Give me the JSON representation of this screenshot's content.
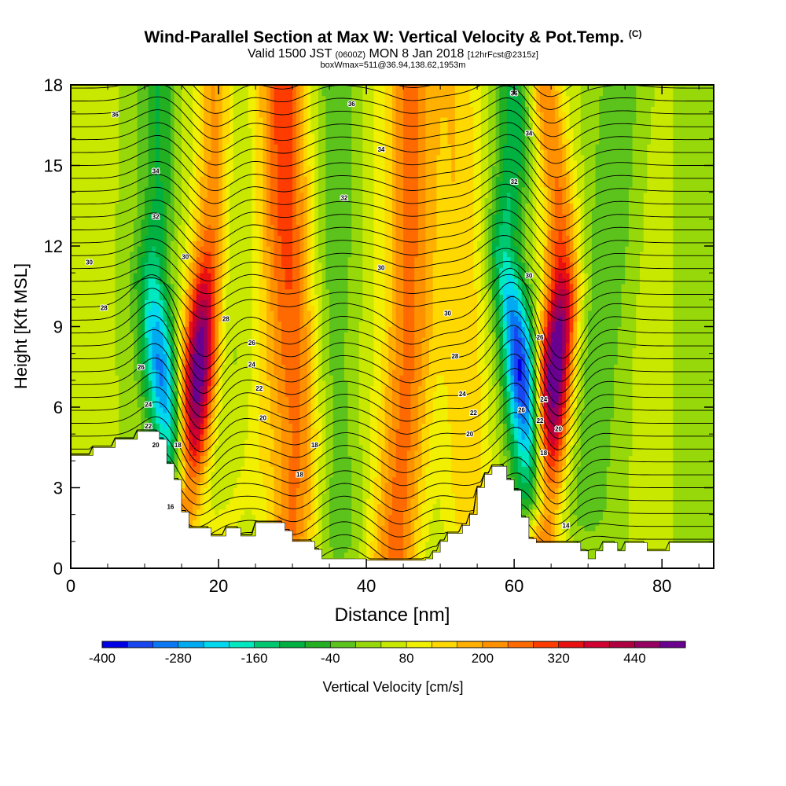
{
  "title": {
    "main": "Wind-Parallel Section at Max W: Vertical Velocity & Pot.Temp.",
    "unit_tag": "(C)",
    "valid_a": "Valid 1500 JST",
    "valid_b": "(0600Z)",
    "valid_c": "MON 8 Jan 2018",
    "valid_d": "[12hrFcst@2315z]",
    "box": "boxWmax=511@36.94,138.62,1953m"
  },
  "chart_data": {
    "type": "heatmap",
    "xlabel": "Distance [nm]",
    "ylabel": "Height [Kft MSL]",
    "xlim": [
      0,
      87
    ],
    "ylim": [
      0,
      18
    ],
    "xticks": [
      0,
      20,
      40,
      60,
      80
    ],
    "yticks": [
      0,
      3,
      6,
      9,
      12,
      15,
      18
    ],
    "colorbar": {
      "label": "Vertical Velocity [cm/s]",
      "ticks": [
        -400,
        -280,
        -160,
        -40,
        80,
        200,
        320,
        440
      ],
      "levels": [
        -400,
        -360,
        -320,
        -280,
        -240,
        -200,
        -160,
        -120,
        -80,
        -40,
        0,
        40,
        80,
        120,
        160,
        200,
        240,
        280,
        320,
        360,
        400,
        440,
        480,
        520
      ],
      "colors": [
        "#0000e6",
        "#1846f0",
        "#0a78f5",
        "#00aaf0",
        "#00d8f0",
        "#00e8c0",
        "#00c870",
        "#00b040",
        "#22b022",
        "#5cc21c",
        "#96d80a",
        "#c8e800",
        "#f0f000",
        "#ffd800",
        "#ffb000",
        "#ff9000",
        "#ff6a00",
        "#ff3c00",
        "#e81010",
        "#d00030",
        "#b00040",
        "#960060",
        "#6a0090"
      ]
    },
    "terrain_kft": [
      [
        0,
        4.2
      ],
      [
        3,
        4.2
      ],
      [
        3,
        4.5
      ],
      [
        6,
        4.5
      ],
      [
        6,
        4.8
      ],
      [
        9,
        4.8
      ],
      [
        9,
        5.1
      ],
      [
        12,
        5.1
      ],
      [
        12,
        4.8
      ],
      [
        13,
        4.8
      ],
      [
        13,
        3.9
      ],
      [
        14,
        3.9
      ],
      [
        14,
        3.3
      ],
      [
        15,
        3.3
      ],
      [
        15,
        2.1
      ],
      [
        16,
        2.1
      ],
      [
        16,
        1.5
      ],
      [
        19,
        1.5
      ],
      [
        19,
        1.2
      ],
      [
        21,
        1.2
      ],
      [
        21,
        1.5
      ],
      [
        23,
        1.5
      ],
      [
        23,
        1.2
      ],
      [
        25,
        1.2
      ],
      [
        25,
        1.7
      ],
      [
        29,
        1.7
      ],
      [
        29,
        1.4
      ],
      [
        30,
        1.4
      ],
      [
        30,
        1.0
      ],
      [
        33,
        1.0
      ],
      [
        33,
        0.7
      ],
      [
        34,
        0.7
      ],
      [
        34,
        0.35
      ],
      [
        38,
        0.35
      ],
      [
        38,
        0.35
      ],
      [
        40,
        0.35
      ],
      [
        40,
        0.3
      ],
      [
        48,
        0.3
      ],
      [
        48,
        0.35
      ],
      [
        49,
        0.35
      ],
      [
        49,
        0.6
      ],
      [
        50,
        0.6
      ],
      [
        50,
        1.0
      ],
      [
        51,
        1.0
      ],
      [
        51,
        1.3
      ],
      [
        53,
        1.3
      ],
      [
        53,
        1.6
      ],
      [
        54,
        1.6
      ],
      [
        54,
        2.0
      ],
      [
        55,
        2.0
      ],
      [
        55,
        3.0
      ],
      [
        56,
        3.0
      ],
      [
        56,
        3.5
      ],
      [
        57,
        3.5
      ],
      [
        57,
        3.8
      ],
      [
        59,
        3.8
      ],
      [
        59,
        3.3
      ],
      [
        60,
        3.3
      ],
      [
        60,
        2.9
      ],
      [
        61,
        2.9
      ],
      [
        61,
        1.9
      ],
      [
        62,
        1.9
      ],
      [
        62,
        1.1
      ],
      [
        63,
        1.1
      ],
      [
        63,
        0.95
      ],
      [
        69,
        0.95
      ],
      [
        69,
        0.65
      ],
      [
        70,
        0.65
      ],
      [
        70,
        0.35
      ],
      [
        71,
        0.35
      ],
      [
        71,
        0.65
      ],
      [
        72,
        0.65
      ],
      [
        72,
        0.95
      ],
      [
        74,
        0.95
      ],
      [
        74,
        0.65
      ],
      [
        75,
        0.65
      ],
      [
        75,
        0.95
      ],
      [
        78,
        0.95
      ],
      [
        78,
        0.65
      ],
      [
        81,
        0.65
      ],
      [
        81,
        0.95
      ],
      [
        87,
        0.95
      ]
    ],
    "updrafts": [
      {
        "name": "up1",
        "points": [
          [
            15.5,
            2.3
          ],
          [
            16.5,
            4.5
          ],
          [
            17.2,
            7
          ],
          [
            18,
            10
          ],
          [
            19,
            13
          ],
          [
            19.5,
            16
          ],
          [
            19.5,
            18
          ]
        ],
        "peak": 480
      },
      {
        "name": "up2",
        "points": [
          [
            30,
            1.3
          ],
          [
            31,
            5
          ],
          [
            30.5,
            9
          ],
          [
            29.5,
            13
          ],
          [
            29,
            18
          ]
        ],
        "peak": 200
      },
      {
        "name": "up3",
        "points": [
          [
            44,
            0.5
          ],
          [
            45,
            4
          ],
          [
            46,
            9
          ],
          [
            46,
            14
          ],
          [
            46,
            18
          ]
        ],
        "peak": 220
      },
      {
        "name": "up4",
        "points": [
          [
            64,
            1
          ],
          [
            64.8,
            4
          ],
          [
            65.5,
            7.5
          ],
          [
            66.5,
            10.5
          ],
          [
            66,
            14
          ],
          [
            64,
            18
          ]
        ],
        "peak": 510
      },
      {
        "name": "up5",
        "points": [
          [
            54,
            1.8
          ],
          [
            53.5,
            6
          ],
          [
            52.5,
            12
          ],
          [
            52,
            18
          ]
        ],
        "peak": 100
      },
      {
        "name": "up6",
        "points": [
          [
            20,
            1
          ],
          [
            25,
            4
          ],
          [
            27,
            8
          ],
          [
            28,
            18
          ]
        ],
        "peak": 60
      }
    ],
    "downdrafts": [
      {
        "name": "dn1",
        "points": [
          [
            14,
            3.2
          ],
          [
            13,
            5.5
          ],
          [
            12,
            8
          ],
          [
            11,
            11
          ],
          [
            12,
            14
          ],
          [
            12,
            18
          ]
        ],
        "peak": -330
      },
      {
        "name": "dn2",
        "points": [
          [
            62.5,
            2.5
          ],
          [
            61.5,
            5.5
          ],
          [
            60.5,
            8.5
          ],
          [
            58.5,
            12
          ],
          [
            60,
            16
          ],
          [
            60,
            18
          ]
        ],
        "peak": -400
      },
      {
        "name": "dn3",
        "points": [
          [
            37,
            1
          ],
          [
            36,
            4
          ],
          [
            35,
            8
          ],
          [
            36,
            13
          ],
          [
            36,
            18
          ]
        ],
        "peak": -60
      },
      {
        "name": "dn4",
        "points": [
          [
            69,
            2
          ],
          [
            70,
            5
          ],
          [
            71,
            8
          ],
          [
            73,
            12
          ],
          [
            75,
            18
          ]
        ],
        "peak": -60
      }
    ],
    "isentrope_labels": [
      {
        "text": "36",
        "x": 6,
        "y": 16.9
      },
      {
        "text": "34",
        "x": 11.5,
        "y": 14.8
      },
      {
        "text": "32",
        "x": 11.5,
        "y": 13.1
      },
      {
        "text": "30",
        "x": 2.5,
        "y": 11.4
      },
      {
        "text": "28",
        "x": 4.5,
        "y": 9.7
      },
      {
        "text": "26",
        "x": 9.5,
        "y": 7.5
      },
      {
        "text": "24",
        "x": 10.5,
        "y": 6.1
      },
      {
        "text": "22",
        "x": 10.5,
        "y": 5.3
      },
      {
        "text": "20",
        "x": 11.5,
        "y": 4.6
      },
      {
        "text": "18",
        "x": 14.5,
        "y": 4.6
      },
      {
        "text": "16",
        "x": 13.5,
        "y": 2.3
      },
      {
        "text": "30",
        "x": 15.5,
        "y": 11.6
      },
      {
        "text": "28",
        "x": 21,
        "y": 9.3
      },
      {
        "text": "26",
        "x": 24.5,
        "y": 8.4
      },
      {
        "text": "24",
        "x": 24.5,
        "y": 7.6
      },
      {
        "text": "22",
        "x": 25.5,
        "y": 6.7
      },
      {
        "text": "20",
        "x": 26,
        "y": 5.6
      },
      {
        "text": "18",
        "x": 33,
        "y": 4.6
      },
      {
        "text": "18",
        "x": 31,
        "y": 3.5
      },
      {
        "text": "36",
        "x": 38,
        "y": 17.3
      },
      {
        "text": "34",
        "x": 42,
        "y": 15.6
      },
      {
        "text": "32",
        "x": 37,
        "y": 13.8
      },
      {
        "text": "30",
        "x": 42,
        "y": 11.2
      },
      {
        "text": "30",
        "x": 51,
        "y": 9.5
      },
      {
        "text": "28",
        "x": 52,
        "y": 7.9
      },
      {
        "text": "24",
        "x": 53,
        "y": 6.5
      },
      {
        "text": "22",
        "x": 54.5,
        "y": 5.8
      },
      {
        "text": "20",
        "x": 54,
        "y": 5.0
      },
      {
        "text": "36",
        "x": 60,
        "y": 17.7
      },
      {
        "text": "34",
        "x": 62,
        "y": 16.2
      },
      {
        "text": "32",
        "x": 60,
        "y": 14.4
      },
      {
        "text": "30",
        "x": 62,
        "y": 10.9
      },
      {
        "text": "26",
        "x": 63.5,
        "y": 8.6
      },
      {
        "text": "26",
        "x": 61,
        "y": 5.9
      },
      {
        "text": "24",
        "x": 64,
        "y": 6.3
      },
      {
        "text": "22",
        "x": 63.5,
        "y": 5.5
      },
      {
        "text": "20",
        "x": 66,
        "y": 5.2
      },
      {
        "text": "18",
        "x": 64,
        "y": 4.3
      },
      {
        "text": "14",
        "x": 67,
        "y": 1.6
      }
    ]
  }
}
